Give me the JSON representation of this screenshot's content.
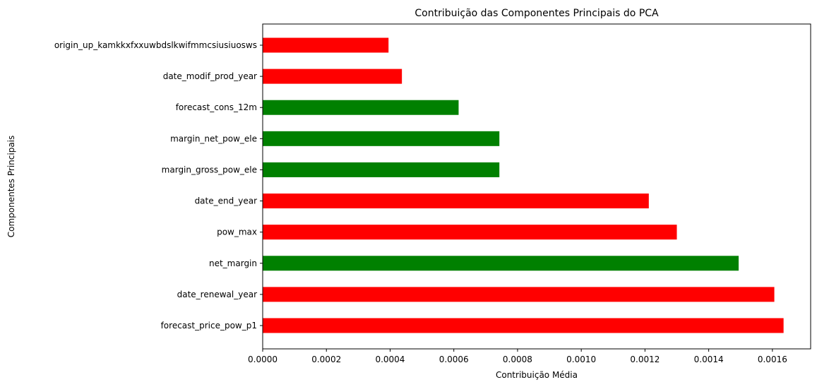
{
  "chart_data": {
    "type": "bar",
    "orientation": "horizontal",
    "title": "Contribuição das Componentes Principais do PCA",
    "xlabel": "Contribuição Média",
    "ylabel": "Componentes Principais",
    "xlim": [
      0,
      0.00172
    ],
    "xticks": [
      "0.0000",
      "0.0002",
      "0.0004",
      "0.0006",
      "0.0008",
      "0.0010",
      "0.0012",
      "0.0014",
      "0.0016"
    ],
    "xtick_values": [
      0,
      0.0002,
      0.0004,
      0.0006,
      0.0008,
      0.001,
      0.0012,
      0.0014,
      0.0016
    ],
    "grid": false,
    "legend": "none",
    "categories": [
      "forecast_price_pow_p1",
      "date_renewal_year",
      "net_margin",
      "pow_max",
      "date_end_year",
      "margin_gross_pow_ele",
      "margin_net_pow_ele",
      "forecast_cons_12m",
      "date_modif_prod_year",
      "origin_up_kamkkxfxxuwbdslkwifmmcsiusiuosws"
    ],
    "values": [
      0.001635,
      0.001606,
      0.001494,
      0.0013,
      0.001212,
      0.000743,
      0.000743,
      0.000615,
      0.000437,
      0.000395
    ],
    "colors": [
      "#ff0000",
      "#ff0000",
      "#008000",
      "#ff0000",
      "#ff0000",
      "#008000",
      "#008000",
      "#008000",
      "#ff0000",
      "#ff0000"
    ]
  }
}
